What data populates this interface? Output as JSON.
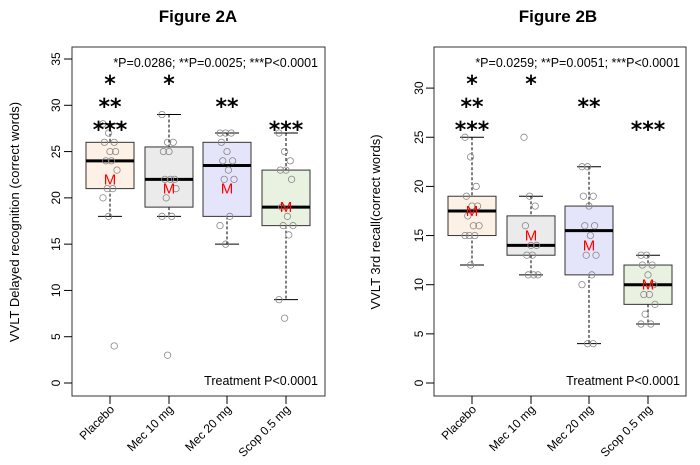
{
  "chart_data": [
    {
      "type": "boxplot",
      "title": "Figure 2A",
      "xlabel": "",
      "ylabel": "VVLT Delayed recognition (correct words)",
      "ylim": [
        0,
        35
      ],
      "yticks": [
        0,
        5,
        10,
        15,
        20,
        25,
        30,
        35
      ],
      "grid": false,
      "categories": [
        "Placebo",
        "Mec 10 mg",
        "Mec 20 mg",
        "Scop 0.5 mg"
      ],
      "fills": [
        "#fdf1e6",
        "#ebebeb",
        "#e4e4fb",
        "#e9f2e1"
      ],
      "mean_marker": "M",
      "mean_color": "#ff0000",
      "boxes": [
        {
          "name": "Placebo",
          "whisker_low": 18,
          "q1": 21,
          "median": 24,
          "q3": 26,
          "whisker_high": 28,
          "mean": 22,
          "outliers": [
            4
          ],
          "points": [
            28,
            27,
            26,
            26,
            25,
            25,
            24,
            24,
            23,
            21,
            21,
            20,
            18,
            4
          ]
        },
        {
          "name": "Mec 10 mg",
          "whisker_low": 18,
          "q1": 19,
          "median": 22,
          "q3": 25.5,
          "whisker_high": 29,
          "mean": 21,
          "outliers": [
            3
          ],
          "points": [
            29,
            26,
            26,
            25,
            25,
            22,
            22,
            22,
            21,
            20,
            18,
            18,
            3
          ]
        },
        {
          "name": "Mec 20 mg",
          "whisker_low": 15,
          "q1": 18,
          "median": 23.5,
          "q3": 26,
          "whisker_high": 27,
          "mean": 21,
          "outliers": [],
          "points": [
            27,
            27,
            27,
            26,
            25,
            24,
            24,
            23,
            22,
            22,
            18,
            17,
            15
          ]
        },
        {
          "name": "Scop 0.5 mg",
          "whisker_low": 9,
          "q1": 17,
          "median": 19,
          "q3": 23,
          "whisker_high": 27,
          "mean": 19,
          "outliers": [
            7
          ],
          "points": [
            27,
            25,
            24,
            23,
            23,
            22,
            19,
            18,
            17,
            17,
            16,
            9,
            7
          ]
        }
      ],
      "significance": [
        {
          "category": "Placebo",
          "marks": [
            "*",
            "**",
            "***"
          ]
        },
        {
          "category": "Mec 10 mg",
          "marks": [
            "*"
          ]
        },
        {
          "category": "Mec 20 mg",
          "marks": [
            "**"
          ]
        },
        {
          "category": "Scop 0.5 mg",
          "marks": [
            "***"
          ]
        }
      ],
      "annotation_top": "*P=0.0286; **P=0.0025; ***P<0.0001",
      "annotation_bottom": "Treatment P<0.0001"
    },
    {
      "type": "boxplot",
      "title": "Figure 2B",
      "xlabel": "",
      "ylabel": "VVLT 3rd recall(correct words)",
      "ylim": [
        0,
        33
      ],
      "yticks": [
        0,
        5,
        10,
        15,
        20,
        25,
        30
      ],
      "grid": false,
      "categories": [
        "Placebo",
        "Mec 10 mg",
        "Mec 20 mg",
        "Scop 0.5 mg"
      ],
      "fills": [
        "#fdf1e6",
        "#ebebeb",
        "#e4e4fb",
        "#e9f2e1"
      ],
      "mean_marker": "M",
      "mean_color": "#ff0000",
      "boxes": [
        {
          "name": "Placebo",
          "whisker_low": 12,
          "q1": 15,
          "median": 17.5,
          "q3": 19,
          "whisker_high": 25,
          "mean": 17.5,
          "outliers": [],
          "points": [
            25,
            23,
            20,
            19,
            18,
            18,
            17,
            16,
            16,
            15,
            15,
            15,
            12
          ]
        },
        {
          "name": "Mec 10 mg",
          "whisker_low": 11,
          "q1": 13,
          "median": 14,
          "q3": 17,
          "whisker_high": 19,
          "mean": 15,
          "outliers": [
            25
          ],
          "points": [
            25,
            19,
            18,
            16,
            14,
            14,
            13,
            13,
            11,
            11,
            11
          ]
        },
        {
          "name": "Mec 20 mg",
          "whisker_low": 4,
          "q1": 11,
          "median": 15.5,
          "q3": 18,
          "whisker_high": 22,
          "mean": 14,
          "outliers": [],
          "points": [
            22,
            22,
            19,
            19,
            18,
            16,
            16,
            15,
            13,
            13,
            11,
            10,
            4,
            4
          ]
        },
        {
          "name": "Scop 0.5 mg",
          "whisker_low": 6,
          "q1": 8,
          "median": 10,
          "q3": 12,
          "whisker_high": 13,
          "mean": 10,
          "outliers": [],
          "points": [
            13,
            13,
            12,
            12,
            11,
            10,
            9,
            9,
            8,
            7,
            6,
            6
          ]
        }
      ],
      "significance": [
        {
          "category": "Placebo",
          "marks": [
            "*",
            "**",
            "***"
          ]
        },
        {
          "category": "Mec 10 mg",
          "marks": [
            "*"
          ]
        },
        {
          "category": "Mec 20 mg",
          "marks": [
            "**"
          ]
        },
        {
          "category": "Scop 0.5 mg",
          "marks": [
            "***"
          ]
        }
      ],
      "annotation_top": "*P=0.0259; **P=0.0051; ***P<0.0001",
      "annotation_bottom": "Treatment P<0.0001"
    }
  ]
}
